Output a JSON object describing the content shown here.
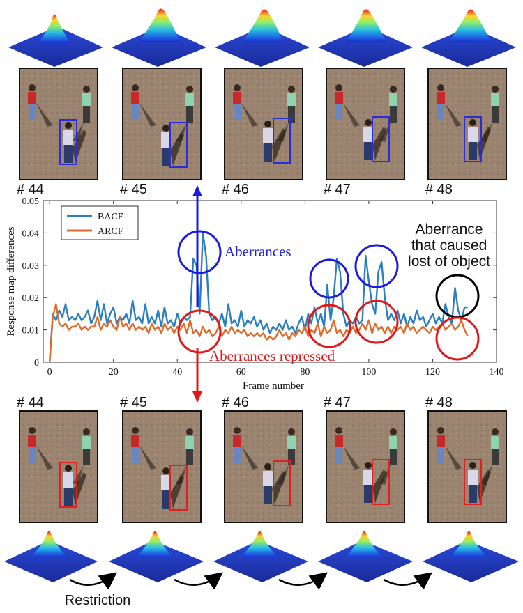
{
  "top_frames": {
    "labels": [
      "# 44",
      "# 45",
      "# 46",
      "# 47",
      "# 48"
    ],
    "box_color": "#2c2cd8"
  },
  "bottom_frames": {
    "labels": [
      "# 44",
      "# 45",
      "# 46",
      "# 47",
      "# 48"
    ],
    "box_color": "#e02020"
  },
  "annotations": {
    "aberrances": "Aberrances",
    "aberrances_repressed": "Aberrances repressed",
    "aberrance_lost_line1": "Aberrance",
    "aberrance_lost_line2": "that caused",
    "aberrance_lost_line3": "lost of object",
    "restriction": "Restriction"
  },
  "chart_data": {
    "type": "line",
    "xlabel": "Frame number",
    "ylabel": "Response map differences",
    "xlim": [
      -2,
      140
    ],
    "ylim": [
      0,
      0.05
    ],
    "xticks": [
      0,
      20,
      40,
      60,
      80,
      100,
      120,
      140
    ],
    "yticks": [
      0,
      0.01,
      0.02,
      0.03,
      0.04,
      0.05
    ],
    "ytick_labels": [
      "0",
      "0.01",
      "0.02",
      "0.03",
      "0.04",
      "0.05"
    ],
    "legend_position": "top-left",
    "series": [
      {
        "name": "BACF",
        "color": "#2b7fbf",
        "points": [
          [
            0,
            0.0
          ],
          [
            1,
            0.015
          ],
          [
            2,
            0.013
          ],
          [
            3,
            0.016
          ],
          [
            4,
            0.014
          ],
          [
            5,
            0.018
          ],
          [
            6,
            0.013
          ],
          [
            7,
            0.014
          ],
          [
            8,
            0.013
          ],
          [
            9,
            0.015
          ],
          [
            10,
            0.013
          ],
          [
            11,
            0.014
          ],
          [
            12,
            0.016
          ],
          [
            13,
            0.012
          ],
          [
            14,
            0.014
          ],
          [
            15,
            0.019
          ],
          [
            16,
            0.013
          ],
          [
            17,
            0.018
          ],
          [
            18,
            0.012
          ],
          [
            19,
            0.015
          ],
          [
            20,
            0.017
          ],
          [
            21,
            0.012
          ],
          [
            22,
            0.014
          ],
          [
            23,
            0.013
          ],
          [
            24,
            0.015
          ],
          [
            25,
            0.012
          ],
          [
            26,
            0.019
          ],
          [
            27,
            0.013
          ],
          [
            28,
            0.014
          ],
          [
            29,
            0.012
          ],
          [
            30,
            0.018
          ],
          [
            31,
            0.012
          ],
          [
            32,
            0.014
          ],
          [
            33,
            0.012
          ],
          [
            34,
            0.016
          ],
          [
            35,
            0.011
          ],
          [
            36,
            0.017
          ],
          [
            37,
            0.012
          ],
          [
            38,
            0.013
          ],
          [
            39,
            0.011
          ],
          [
            40,
            0.015
          ],
          [
            41,
            0.012
          ],
          [
            42,
            0.014
          ],
          [
            43,
            0.013
          ],
          [
            44,
            0.014
          ],
          [
            45,
            0.032
          ],
          [
            46,
            0.03
          ],
          [
            47,
            0.015
          ],
          [
            48,
            0.04
          ],
          [
            49,
            0.033
          ],
          [
            50,
            0.015
          ],
          [
            51,
            0.013
          ],
          [
            52,
            0.014
          ],
          [
            53,
            0.012
          ],
          [
            54,
            0.015
          ],
          [
            55,
            0.011
          ],
          [
            56,
            0.018
          ],
          [
            57,
            0.012
          ],
          [
            58,
            0.013
          ],
          [
            59,
            0.011
          ],
          [
            60,
            0.016
          ],
          [
            61,
            0.011
          ],
          [
            62,
            0.013
          ],
          [
            63,
            0.012
          ],
          [
            64,
            0.014
          ],
          [
            65,
            0.011
          ],
          [
            66,
            0.013
          ],
          [
            67,
            0.01
          ],
          [
            68,
            0.012
          ],
          [
            69,
            0.009
          ],
          [
            70,
            0.011
          ],
          [
            71,
            0.01
          ],
          [
            72,
            0.012
          ],
          [
            73,
            0.01
          ],
          [
            74,
            0.013
          ],
          [
            75,
            0.01
          ],
          [
            76,
            0.011
          ],
          [
            77,
            0.009
          ],
          [
            78,
            0.012
          ],
          [
            79,
            0.014
          ],
          [
            80,
            0.01
          ],
          [
            81,
            0.015
          ],
          [
            82,
            0.012
          ],
          [
            83,
            0.017
          ],
          [
            84,
            0.012
          ],
          [
            85,
            0.015
          ],
          [
            86,
            0.011
          ],
          [
            87,
            0.024
          ],
          [
            88,
            0.013
          ],
          [
            89,
            0.02
          ],
          [
            90,
            0.032
          ],
          [
            91,
            0.028
          ],
          [
            92,
            0.015
          ],
          [
            93,
            0.011
          ],
          [
            94,
            0.013
          ],
          [
            95,
            0.012
          ],
          [
            96,
            0.014
          ],
          [
            97,
            0.012
          ],
          [
            98,
            0.013
          ],
          [
            99,
            0.033
          ],
          [
            100,
            0.025
          ],
          [
            101,
            0.018
          ],
          [
            102,
            0.015
          ],
          [
            103,
            0.028
          ],
          [
            104,
            0.031
          ],
          [
            105,
            0.02
          ],
          [
            106,
            0.013
          ],
          [
            107,
            0.015
          ],
          [
            108,
            0.013
          ],
          [
            109,
            0.016
          ],
          [
            110,
            0.012
          ],
          [
            111,
            0.015
          ],
          [
            112,
            0.011
          ],
          [
            113,
            0.014
          ],
          [
            114,
            0.012
          ],
          [
            115,
            0.016
          ],
          [
            116,
            0.013
          ],
          [
            117,
            0.014
          ],
          [
            118,
            0.011
          ],
          [
            119,
            0.013
          ],
          [
            120,
            0.015
          ],
          [
            121,
            0.012
          ],
          [
            122,
            0.014
          ],
          [
            123,
            0.012
          ],
          [
            124,
            0.018
          ],
          [
            125,
            0.014
          ],
          [
            126,
            0.012
          ],
          [
            127,
            0.023
          ],
          [
            128,
            0.016
          ],
          [
            129,
            0.013
          ],
          [
            130,
            0.017
          ],
          [
            131,
            0.017
          ]
        ]
      },
      {
        "name": "ARCF",
        "color": "#e06a2a",
        "points": [
          [
            0,
            0.0
          ],
          [
            1,
            0.014
          ],
          [
            2,
            0.018
          ],
          [
            3,
            0.012
          ],
          [
            4,
            0.011
          ],
          [
            5,
            0.012
          ],
          [
            6,
            0.01
          ],
          [
            7,
            0.011
          ],
          [
            8,
            0.011
          ],
          [
            9,
            0.012
          ],
          [
            10,
            0.01
          ],
          [
            11,
            0.011
          ],
          [
            12,
            0.01
          ],
          [
            13,
            0.011
          ],
          [
            14,
            0.011
          ],
          [
            15,
            0.014
          ],
          [
            16,
            0.01
          ],
          [
            17,
            0.012
          ],
          [
            18,
            0.011
          ],
          [
            19,
            0.013
          ],
          [
            20,
            0.011
          ],
          [
            21,
            0.01
          ],
          [
            22,
            0.014
          ],
          [
            23,
            0.011
          ],
          [
            24,
            0.012
          ],
          [
            25,
            0.01
          ],
          [
            26,
            0.012
          ],
          [
            27,
            0.01
          ],
          [
            28,
            0.011
          ],
          [
            29,
            0.01
          ],
          [
            30,
            0.011
          ],
          [
            31,
            0.009
          ],
          [
            32,
            0.012
          ],
          [
            33,
            0.01
          ],
          [
            34,
            0.011
          ],
          [
            35,
            0.009
          ],
          [
            36,
            0.012
          ],
          [
            37,
            0.01
          ],
          [
            38,
            0.011
          ],
          [
            39,
            0.009
          ],
          [
            40,
            0.011
          ],
          [
            41,
            0.01
          ],
          [
            42,
            0.012
          ],
          [
            43,
            0.009
          ],
          [
            44,
            0.013
          ],
          [
            45,
            0.009
          ],
          [
            46,
            0.01
          ],
          [
            47,
            0.008
          ],
          [
            48,
            0.011
          ],
          [
            49,
            0.009
          ],
          [
            50,
            0.01
          ],
          [
            51,
            0.008
          ],
          [
            52,
            0.009
          ],
          [
            53,
            0.011
          ],
          [
            54,
            0.008
          ],
          [
            55,
            0.01
          ],
          [
            56,
            0.009
          ],
          [
            57,
            0.011
          ],
          [
            58,
            0.009
          ],
          [
            59,
            0.01
          ],
          [
            60,
            0.009
          ],
          [
            61,
            0.01
          ],
          [
            62,
            0.008
          ],
          [
            63,
            0.009
          ],
          [
            64,
            0.008
          ],
          [
            65,
            0.009
          ],
          [
            66,
            0.008
          ],
          [
            67,
            0.009
          ],
          [
            68,
            0.007
          ],
          [
            69,
            0.008
          ],
          [
            70,
            0.007
          ],
          [
            71,
            0.008
          ],
          [
            72,
            0.01
          ],
          [
            73,
            0.008
          ],
          [
            74,
            0.009
          ],
          [
            75,
            0.007
          ],
          [
            76,
            0.009
          ],
          [
            77,
            0.008
          ],
          [
            78,
            0.01
          ],
          [
            79,
            0.009
          ],
          [
            80,
            0.011
          ],
          [
            81,
            0.008
          ],
          [
            82,
            0.01
          ],
          [
            83,
            0.009
          ],
          [
            84,
            0.012
          ],
          [
            85,
            0.008
          ],
          [
            86,
            0.011
          ],
          [
            87,
            0.009
          ],
          [
            88,
            0.01
          ],
          [
            89,
            0.013
          ],
          [
            90,
            0.009
          ],
          [
            91,
            0.01
          ],
          [
            92,
            0.008
          ],
          [
            93,
            0.01
          ],
          [
            94,
            0.009
          ],
          [
            95,
            0.011
          ],
          [
            96,
            0.009
          ],
          [
            97,
            0.01
          ],
          [
            98,
            0.012
          ],
          [
            99,
            0.01
          ],
          [
            100,
            0.013
          ],
          [
            101,
            0.009
          ],
          [
            102,
            0.012
          ],
          [
            103,
            0.01
          ],
          [
            104,
            0.011
          ],
          [
            105,
            0.009
          ],
          [
            106,
            0.011
          ],
          [
            107,
            0.009
          ],
          [
            108,
            0.011
          ],
          [
            109,
            0.01
          ],
          [
            110,
            0.011
          ],
          [
            111,
            0.009
          ],
          [
            112,
            0.012
          ],
          [
            113,
            0.01
          ],
          [
            114,
            0.011
          ],
          [
            115,
            0.009
          ],
          [
            116,
            0.01
          ],
          [
            117,
            0.011
          ],
          [
            118,
            0.01
          ],
          [
            119,
            0.009
          ],
          [
            120,
            0.011
          ],
          [
            121,
            0.01
          ],
          [
            122,
            0.011
          ],
          [
            123,
            0.012
          ],
          [
            124,
            0.01
          ],
          [
            125,
            0.011
          ],
          [
            126,
            0.012
          ],
          [
            127,
            0.01
          ],
          [
            128,
            0.011
          ],
          [
            129,
            0.013
          ],
          [
            130,
            0.01
          ],
          [
            131,
            0.008
          ]
        ]
      }
    ]
  }
}
